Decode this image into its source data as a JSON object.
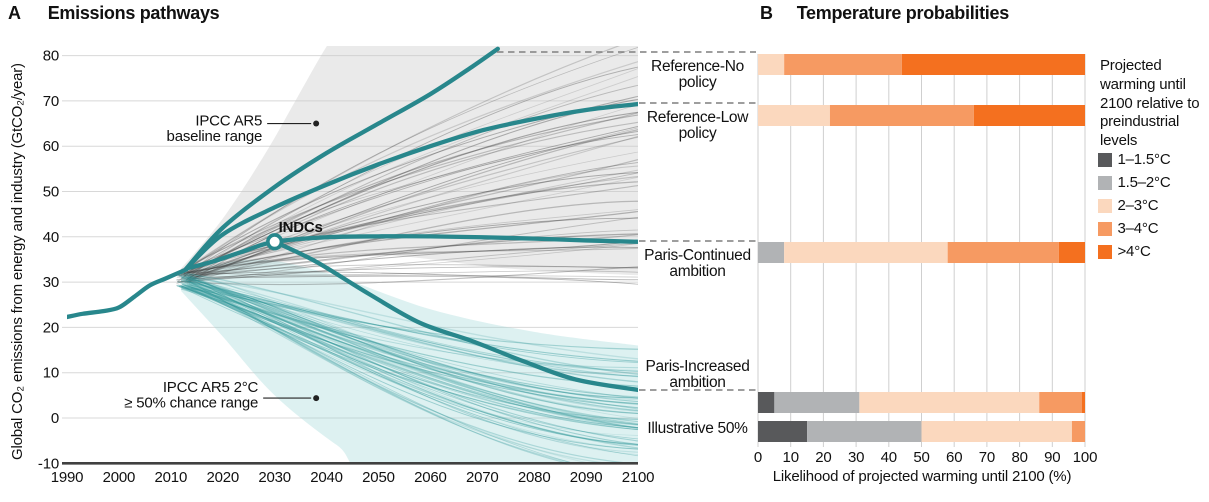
{
  "colors": {
    "teal": "#28878c",
    "teal_band": "#9fd6d6",
    "teal_ensemble": "#2f9698",
    "gray_band": "#c9c9c9",
    "gray_ensemble": "#3c3c3c",
    "grid_a": "#d8d8d8",
    "grid_b": "#cfcfcf",
    "axis": "#404040",
    "dash": "#7f7f7f",
    "text": "#111111"
  },
  "chart_data": [
    {
      "id": "emissions_pathways",
      "type": "line",
      "panel_letter": "A",
      "title": "Emissions pathways",
      "ylabel": "Global CO₂ emissions from energy and industry (GtCO₂/year)",
      "xlim": [
        1990,
        2100
      ],
      "ylim": [
        -10,
        80
      ],
      "x_ticks": [
        1990,
        2000,
        2010,
        2020,
        2030,
        2040,
        2050,
        2060,
        2070,
        2080,
        2090,
        2100
      ],
      "y_ticks": [
        -10,
        0,
        10,
        20,
        30,
        40,
        50,
        60,
        70,
        80
      ],
      "grid": "horizontal",
      "line_color": "#28878c",
      "marker": {
        "label": "INDCs",
        "x": 2030,
        "y": 38.9
      },
      "annotations": [
        {
          "name": "ipcc-ar5-baseline-range",
          "lines": [
            "IPCC AR5",
            "baseline range"
          ],
          "target": {
            "x": 2038,
            "y": 65
          }
        },
        {
          "name": "ipcc-ar5-2c-range",
          "lines": [
            "IPCC AR5 2°C",
            "≥ 50% chance range"
          ],
          "target": {
            "x": 2038,
            "y": 4.4
          }
        }
      ],
      "bands": [
        {
          "name": "ipcc-ar5-baseline-range",
          "color": "#c9c9c9",
          "opacity": 0.38,
          "upper": [
            [
              2012,
              33
            ],
            [
              2020,
              44
            ],
            [
              2028,
              58
            ],
            [
              2034,
              70
            ],
            [
              2040,
              82
            ],
            [
              2046,
              92
            ],
            [
              2100,
              92
            ]
          ],
          "lower": [
            [
              2012,
              30
            ],
            [
              2030,
              34
            ],
            [
              2050,
              36
            ],
            [
              2075,
              33
            ],
            [
              2100,
              31.5
            ]
          ]
        },
        {
          "name": "ipcc-ar5-2c-50pct-range",
          "color": "#9fd6d6",
          "opacity": 0.35,
          "upper": [
            [
              2012,
              32
            ],
            [
              2026,
              35
            ],
            [
              2040,
              32
            ],
            [
              2060,
              24
            ],
            [
              2080,
              19
            ],
            [
              2100,
              16
            ]
          ],
          "lower": [
            [
              2012,
              28
            ],
            [
              2020,
              18
            ],
            [
              2030,
              5
            ],
            [
              2042,
              -6
            ],
            [
              2052,
              -13
            ],
            [
              2100,
              -13
            ]
          ]
        }
      ],
      "series": [
        {
          "name": "Historical",
          "points": [
            [
              1990,
              22.3
            ],
            [
              1993,
              23.0
            ],
            [
              1997,
              23.6
            ],
            [
              2000,
              24.4
            ],
            [
              2003,
              26.8
            ],
            [
              2006,
              29.3
            ],
            [
              2009,
              30.8
            ],
            [
              2013,
              32.8
            ]
          ]
        },
        {
          "name": "Reference-No policy",
          "points": [
            [
              2013,
              33
            ],
            [
              2020,
              42
            ],
            [
              2030,
              51
            ],
            [
              2040,
              58.5
            ],
            [
              2050,
              65
            ],
            [
              2060,
              71.5
            ],
            [
              2068,
              77.5
            ],
            [
              2073,
              81.5
            ]
          ]
        },
        {
          "name": "Reference-Low policy",
          "points": [
            [
              2013,
              33
            ],
            [
              2020,
              40.5
            ],
            [
              2030,
              46.5
            ],
            [
              2040,
              51.5
            ],
            [
              2050,
              56
            ],
            [
              2060,
              60
            ],
            [
              2070,
              63.5
            ],
            [
              2080,
              66
            ],
            [
              2090,
              68
            ],
            [
              2100,
              69.3
            ]
          ]
        },
        {
          "name": "Paris-Continued ambition",
          "points": [
            [
              2013,
              33
            ],
            [
              2018,
              34.5
            ],
            [
              2024,
              36.8
            ],
            [
              2030,
              38.9
            ],
            [
              2040,
              39.9
            ],
            [
              2050,
              40.1
            ],
            [
              2060,
              40.1
            ],
            [
              2070,
              39.9
            ],
            [
              2080,
              39.6
            ],
            [
              2090,
              39.2
            ],
            [
              2100,
              38.9
            ]
          ]
        },
        {
          "name": "Paris-Increased ambition",
          "points": [
            [
              2030,
              38.9
            ],
            [
              2038,
              34.5
            ],
            [
              2048,
              27.5
            ],
            [
              2058,
              21
            ],
            [
              2068,
              17
            ],
            [
              2078,
              12.5
            ],
            [
              2088,
              8.5
            ],
            [
              2100,
              6.2
            ]
          ]
        }
      ]
    },
    {
      "id": "temperature_probabilities",
      "type": "stacked_bar_horizontal",
      "panel_letter": "B",
      "title": "Temperature probabilities",
      "xlabel": "Likelihood of projected warming until 2100 (%)",
      "xlim": [
        0,
        100
      ],
      "x_ticks": [
        0,
        10,
        20,
        30,
        40,
        50,
        60,
        70,
        80,
        90,
        100
      ],
      "legend_title": "Projected warming until 2100 relative to preindustrial levels",
      "legend": [
        {
          "label": "1–1.5°C",
          "color": "#58595b"
        },
        {
          "label": "1.5–2°C",
          "color": "#b1b3b5"
        },
        {
          "label": "2–3°C",
          "color": "#fbd8be"
        },
        {
          "label": "3–4°C",
          "color": "#f69a62"
        },
        {
          "label": ">4°C",
          "color": "#f4701f"
        }
      ],
      "rows": [
        {
          "label": "Reference-No policy",
          "label_lines": [
            "Reference-No",
            "policy"
          ],
          "values": [
            0,
            0,
            8,
            36,
            56
          ]
        },
        {
          "label": "Reference-Low policy",
          "label_lines": [
            "Reference-Low",
            "policy"
          ],
          "values": [
            0,
            0,
            22,
            44,
            34
          ]
        },
        {
          "label": "Paris-Continued ambition",
          "label_lines": [
            "Paris-Continued",
            "ambition"
          ],
          "values": [
            0,
            8,
            50,
            34,
            8
          ]
        },
        {
          "label": "Paris-Increased ambition",
          "label_lines": [
            "Paris-Increased",
            "ambition"
          ],
          "values": [
            5,
            26,
            55,
            13,
            1
          ]
        },
        {
          "label": "Illustrative 50%",
          "label_lines": [
            "Illustrative 50%"
          ],
          "values": [
            15,
            35,
            46,
            4,
            0
          ]
        }
      ]
    }
  ]
}
